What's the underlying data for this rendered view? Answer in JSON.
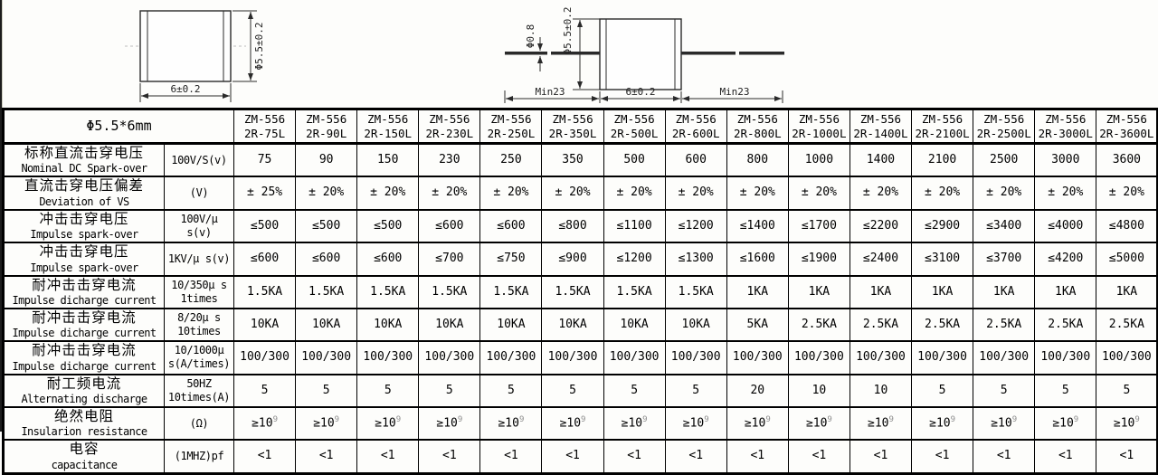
{
  "page": {
    "background": "#fdfdfb",
    "line_color": "#000000",
    "sup_color": "#8d8d8d"
  },
  "diagram_left": {
    "diameter_label": "Φ5.5±0.2",
    "width_label": "6±0.2"
  },
  "diagram_right": {
    "lead_diameter_label": "Φ0.8",
    "diameter_label": "Φ5.5±0.2",
    "body_width_label": "6±0.2",
    "left_lead_label": "Min23",
    "right_lead_label": "Min23"
  },
  "table": {
    "size_header": "Φ5.5*6mm",
    "models": [
      {
        "series": "ZM-556",
        "code": "2R-75L"
      },
      {
        "series": "ZM-556",
        "code": "2R-90L"
      },
      {
        "series": "ZM-556",
        "code": "2R-150L"
      },
      {
        "series": "ZM-556",
        "code": "2R-230L"
      },
      {
        "series": "ZM-556",
        "code": "2R-250L"
      },
      {
        "series": "ZM-556",
        "code": "2R-350L"
      },
      {
        "series": "ZM-556",
        "code": "2R-500L"
      },
      {
        "series": "ZM-556",
        "code": "2R-600L"
      },
      {
        "series": "ZM-556",
        "code": "2R-800L"
      },
      {
        "series": "ZM-556",
        "code": "2R-1000L"
      },
      {
        "series": "ZM-556",
        "code": "2R-1400L"
      },
      {
        "series": "ZM-556",
        "code": "2R-2100L"
      },
      {
        "series": "ZM-556",
        "code": "2R-2500L"
      },
      {
        "series": "ZM-556",
        "code": "2R-3000L"
      },
      {
        "series": "ZM-556",
        "code": "2R-3600L"
      }
    ],
    "rows": [
      {
        "label_cn": "标称直流击穿电压",
        "label_en": "Nominal DC Spark-over",
        "unit": [
          "100V/S(v)"
        ],
        "values": [
          "75",
          "90",
          "150",
          "230",
          "250",
          "350",
          "500",
          "600",
          "800",
          "1000",
          "1400",
          "2100",
          "2500",
          "3000",
          "3600"
        ]
      },
      {
        "label_cn": "直流击穿电压偏差",
        "label_en": "Deviation of VS",
        "unit": [
          "(V)"
        ],
        "values": [
          "± 25%",
          "± 20%",
          "± 20%",
          "± 20%",
          "± 20%",
          "± 20%",
          "± 20%",
          "± 20%",
          "± 20%",
          "± 20%",
          "± 20%",
          "± 20%",
          "± 20%",
          "± 20%",
          "± 20%"
        ]
      },
      {
        "label_cn": "冲击击穿电压",
        "label_en": "Impulse spark-over",
        "unit": [
          "100V/μ",
          "s(v)"
        ],
        "values": [
          "≤500",
          "≤500",
          "≤500",
          "≤600",
          "≤600",
          "≤800",
          "≤1100",
          "≤1200",
          "≤1400",
          "≤1700",
          "≤2200",
          "≤2900",
          "≤3400",
          "≤4000",
          "≤4800"
        ]
      },
      {
        "label_cn": "冲击击穿电压",
        "label_en": "Impulse spark-over",
        "unit": [
          "1KV/μ s(v)"
        ],
        "values": [
          "≤600",
          "≤600",
          "≤600",
          "≤700",
          "≤750",
          "≤900",
          "≤1200",
          "≤1300",
          "≤1600",
          "≤1900",
          "≤2400",
          "≤3100",
          "≤3700",
          "≤4200",
          "≤5000"
        ]
      },
      {
        "label_cn": "耐冲击击穿电流",
        "label_en": "Impulse dicharge current",
        "unit": [
          "10/350μ s",
          "1times"
        ],
        "values": [
          "1.5KA",
          "1.5KA",
          "1.5KA",
          "1.5KA",
          "1.5KA",
          "1.5KA",
          "1.5KA",
          "1.5KA",
          "1KA",
          "1KA",
          "1KA",
          "1KA",
          "1KA",
          "1KA",
          "1KA"
        ]
      },
      {
        "label_cn": "耐冲击击穿电流",
        "label_en": "Impulse dicharge current",
        "unit": [
          "8/20μ s",
          "10times"
        ],
        "values": [
          "10KA",
          "10KA",
          "10KA",
          "10KA",
          "10KA",
          "10KA",
          "10KA",
          "10KA",
          "5KA",
          "2.5KA",
          "2.5KA",
          "2.5KA",
          "2.5KA",
          "2.5KA",
          "2.5KA"
        ]
      },
      {
        "label_cn": "耐冲击击穿电流",
        "label_en": "Impulse dicharge current",
        "unit": [
          "10/1000μ",
          "s(A/times)"
        ],
        "values": [
          "100/300",
          "100/300",
          "100/300",
          "100/300",
          "100/300",
          "100/300",
          "100/300",
          "100/300",
          "100/300",
          "100/300",
          "100/300",
          "100/300",
          "100/300",
          "100/300",
          "100/300"
        ]
      },
      {
        "label_cn": "耐工频电流",
        "label_en": "Alternating discharge",
        "unit": [
          "50HZ",
          "10times(A)"
        ],
        "values": [
          "5",
          "5",
          "5",
          "5",
          "5",
          "5",
          "5",
          "5",
          "20",
          "10",
          "10",
          "5",
          "5",
          "5",
          "5"
        ]
      },
      {
        "label_cn": "绝然电阻",
        "label_en": "Insularion resistance",
        "unit": [
          "(Ω)"
        ],
        "values": [
          "≥10^9",
          "≥10^9",
          "≥10^9",
          "≥10^9",
          "≥10^9",
          "≥10^9",
          "≥10^9",
          "≥10^9",
          "≥10^9",
          "≥10^9",
          "≥10^9",
          "≥10^9",
          "≥10^9",
          "≥10^9",
          "≥10^9"
        ]
      },
      {
        "label_cn": "电容",
        "label_en": "capacitance",
        "unit": [
          "(1MHZ)pf"
        ],
        "values": [
          "<1",
          "<1",
          "<1",
          "<1",
          "<1",
          "<1",
          "<1",
          "<1",
          "<1",
          "<1",
          "<1",
          "<1",
          "<1",
          "<1",
          "<1"
        ]
      }
    ]
  }
}
